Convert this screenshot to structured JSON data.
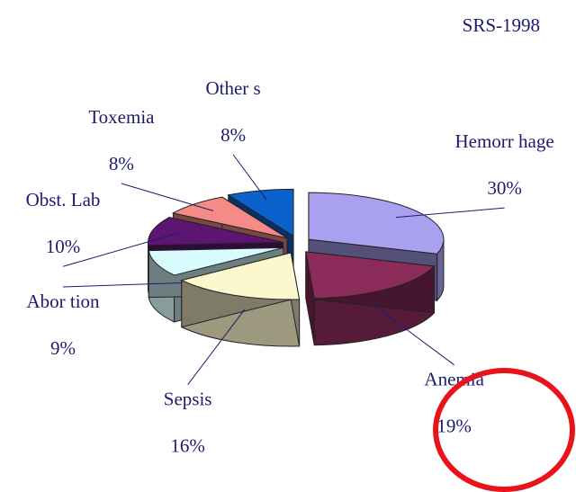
{
  "chart_data": {
    "type": "pie",
    "title": "SRS-1998",
    "categories": [
      "Hemorr hage",
      "Anemia",
      "Sepsis",
      "Abor tion",
      "Obst. Lab",
      "Toxemia",
      "Other s"
    ],
    "values": [
      30,
      19,
      16,
      9,
      10,
      8,
      8
    ],
    "value_labels": [
      "30%",
      "19%",
      "16%",
      "9%",
      "10%",
      "8%",
      "8%"
    ],
    "colors": [
      "#a9a0f0",
      "#8a2b5a",
      "#fcf7cc",
      "#d8fbfd",
      "#5c1570",
      "#f58a86",
      "#0b62cc"
    ]
  }
}
